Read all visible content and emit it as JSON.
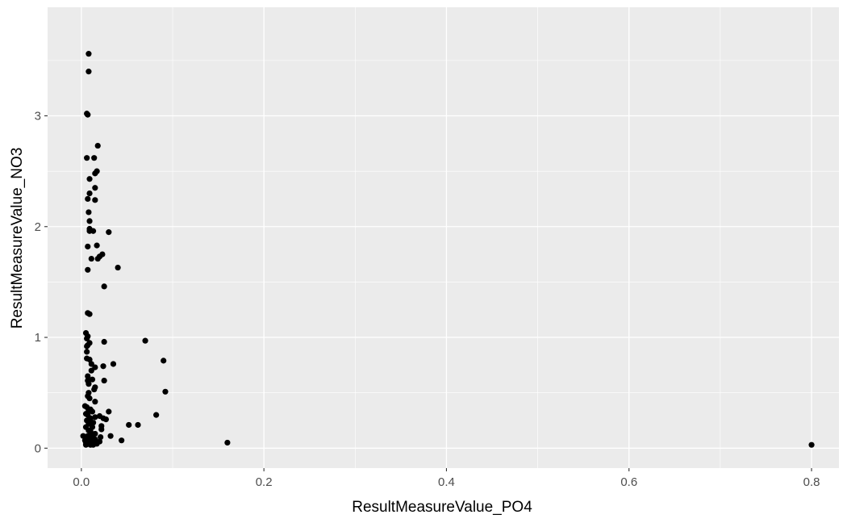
{
  "chart_data": {
    "type": "scatter",
    "xlabel": "ResultMeasureValue_PO4",
    "ylabel": "ResultMeasureValue_NO3",
    "xlim": [
      -0.037,
      0.83
    ],
    "ylim": [
      -0.18,
      3.98
    ],
    "x_ticks": [
      0.0,
      0.2,
      0.4,
      0.6,
      0.8
    ],
    "x_tick_labels": [
      "0.0",
      "0.2",
      "0.4",
      "0.6",
      "0.8"
    ],
    "y_ticks": [
      0,
      1,
      2,
      3
    ],
    "y_tick_labels": [
      "0",
      "1",
      "2",
      "3"
    ],
    "grid": true,
    "panel_color": "#ebebeb",
    "grid_color": "#ffffff",
    "point_color": "#000000",
    "points": [
      [
        0.008,
        3.56
      ],
      [
        0.008,
        3.4
      ],
      [
        0.006,
        3.02
      ],
      [
        0.007,
        3.01
      ],
      [
        0.018,
        2.73
      ],
      [
        0.006,
        2.62
      ],
      [
        0.014,
        2.62
      ],
      [
        0.017,
        2.5
      ],
      [
        0.015,
        2.48
      ],
      [
        0.009,
        2.43
      ],
      [
        0.015,
        2.35
      ],
      [
        0.009,
        2.3
      ],
      [
        0.007,
        2.25
      ],
      [
        0.015,
        2.24
      ],
      [
        0.008,
        2.13
      ],
      [
        0.009,
        2.05
      ],
      [
        0.009,
        1.98
      ],
      [
        0.009,
        1.96
      ],
      [
        0.013,
        1.96
      ],
      [
        0.03,
        1.95
      ],
      [
        0.007,
        1.82
      ],
      [
        0.017,
        1.83
      ],
      [
        0.023,
        1.75
      ],
      [
        0.02,
        1.73
      ],
      [
        0.018,
        1.71
      ],
      [
        0.011,
        1.71
      ],
      [
        0.04,
        1.63
      ],
      [
        0.007,
        1.61
      ],
      [
        0.025,
        1.46
      ],
      [
        0.007,
        1.22
      ],
      [
        0.009,
        1.21
      ],
      [
        0.005,
        1.04
      ],
      [
        0.007,
        1.01
      ],
      [
        0.006,
        0.99
      ],
      [
        0.07,
        0.97
      ],
      [
        0.025,
        0.96
      ],
      [
        0.009,
        0.95
      ],
      [
        0.007,
        0.93
      ],
      [
        0.006,
        0.92
      ],
      [
        0.006,
        0.87
      ],
      [
        0.006,
        0.81
      ],
      [
        0.009,
        0.8
      ],
      [
        0.09,
        0.79
      ],
      [
        0.011,
        0.76
      ],
      [
        0.035,
        0.76
      ],
      [
        0.024,
        0.74
      ],
      [
        0.015,
        0.73
      ],
      [
        0.011,
        0.7
      ],
      [
        0.007,
        0.65
      ],
      [
        0.012,
        0.62
      ],
      [
        0.007,
        0.61
      ],
      [
        0.025,
        0.61
      ],
      [
        0.008,
        0.58
      ],
      [
        0.015,
        0.55
      ],
      [
        0.014,
        0.53
      ],
      [
        0.092,
        0.51
      ],
      [
        0.008,
        0.5
      ],
      [
        0.007,
        0.47
      ],
      [
        0.009,
        0.45
      ],
      [
        0.015,
        0.42
      ],
      [
        0.004,
        0.38
      ],
      [
        0.006,
        0.37
      ],
      [
        0.01,
        0.35
      ],
      [
        0.008,
        0.34
      ],
      [
        0.012,
        0.33
      ],
      [
        0.03,
        0.33
      ],
      [
        0.005,
        0.31
      ],
      [
        0.007,
        0.3
      ],
      [
        0.082,
        0.3
      ],
      [
        0.02,
        0.29
      ],
      [
        0.015,
        0.28
      ],
      [
        0.01,
        0.27
      ],
      [
        0.024,
        0.27
      ],
      [
        0.027,
        0.26
      ],
      [
        0.006,
        0.25
      ],
      [
        0.01,
        0.24
      ],
      [
        0.013,
        0.23
      ],
      [
        0.008,
        0.22
      ],
      [
        0.052,
        0.21
      ],
      [
        0.062,
        0.21
      ],
      [
        0.022,
        0.2
      ],
      [
        0.012,
        0.19
      ],
      [
        0.005,
        0.19
      ],
      [
        0.022,
        0.17
      ],
      [
        0.008,
        0.16
      ],
      [
        0.01,
        0.15
      ],
      [
        0.015,
        0.13
      ],
      [
        0.012,
        0.12
      ],
      [
        0.002,
        0.11
      ],
      [
        0.007,
        0.11
      ],
      [
        0.032,
        0.11
      ],
      [
        0.021,
        0.1
      ],
      [
        0.01,
        0.09
      ],
      [
        0.015,
        0.08
      ],
      [
        0.009,
        0.08
      ],
      [
        0.004,
        0.07
      ],
      [
        0.011,
        0.06
      ],
      [
        0.044,
        0.07
      ],
      [
        0.02,
        0.06
      ],
      [
        0.007,
        0.05
      ],
      [
        0.005,
        0.05
      ],
      [
        0.016,
        0.05
      ],
      [
        0.16,
        0.05
      ],
      [
        0.012,
        0.04
      ],
      [
        0.008,
        0.04
      ],
      [
        0.01,
        0.03
      ],
      [
        0.005,
        0.03
      ],
      [
        0.013,
        0.03
      ],
      [
        0.017,
        0.04
      ],
      [
        0.8,
        0.03
      ]
    ]
  }
}
